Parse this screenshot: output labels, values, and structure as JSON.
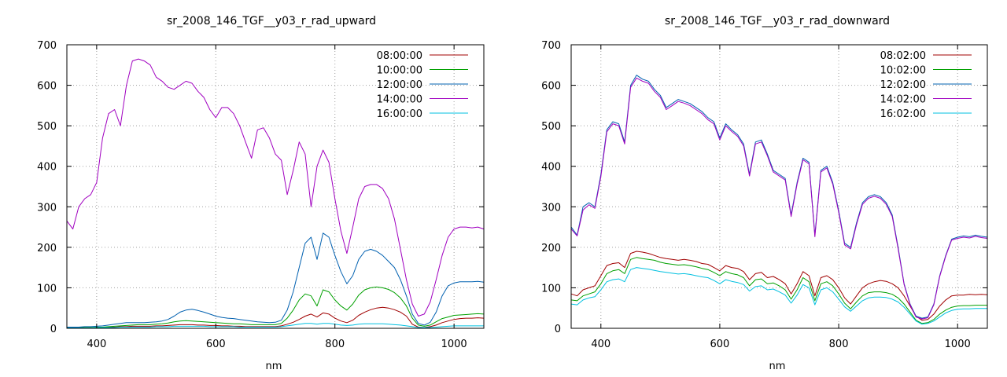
{
  "chart_data": [
    {
      "type": "line",
      "title": "sr_2008_146_TGF__y03_r_rad_upward",
      "xlabel": "nm",
      "ylabel": "",
      "xlim": [
        350,
        1050
      ],
      "ylim": [
        0,
        700
      ],
      "xticks": [
        400,
        600,
        800,
        1000
      ],
      "yticks": [
        0,
        100,
        200,
        300,
        400,
        500,
        600,
        700
      ],
      "grid": true,
      "legend_position": "top-right",
      "x": [
        350,
        360,
        370,
        380,
        390,
        400,
        410,
        420,
        430,
        440,
        450,
        460,
        470,
        480,
        490,
        500,
        510,
        520,
        530,
        540,
        550,
        560,
        570,
        580,
        590,
        600,
        610,
        620,
        630,
        640,
        650,
        660,
        670,
        680,
        690,
        700,
        710,
        720,
        730,
        740,
        750,
        760,
        770,
        780,
        790,
        800,
        810,
        820,
        830,
        840,
        850,
        860,
        870,
        880,
        890,
        900,
        910,
        920,
        930,
        940,
        950,
        960,
        970,
        980,
        990,
        1000,
        1010,
        1020,
        1030,
        1040,
        1050
      ],
      "series": [
        {
          "name": "08:00:00",
          "color": "#a00000",
          "values": [
            1,
            1,
            1,
            1,
            1,
            2,
            2,
            3,
            3,
            4,
            4,
            5,
            5,
            5,
            5,
            6,
            6,
            7,
            8,
            9,
            9,
            9,
            8,
            8,
            7,
            7,
            6,
            6,
            5,
            5,
            4,
            4,
            4,
            4,
            4,
            4,
            6,
            10,
            15,
            22,
            30,
            35,
            28,
            38,
            35,
            25,
            18,
            14,
            20,
            32,
            40,
            46,
            50,
            52,
            50,
            46,
            40,
            30,
            10,
            3,
            2,
            4,
            8,
            14,
            18,
            22,
            24,
            25,
            25,
            26,
            25
          ]
        },
        {
          "name": "10:00:00",
          "color": "#00a000",
          "values": [
            2,
            2,
            2,
            2,
            2,
            3,
            3,
            4,
            5,
            6,
            7,
            8,
            9,
            9,
            9,
            10,
            11,
            13,
            16,
            18,
            19,
            18,
            17,
            16,
            15,
            14,
            13,
            12,
            11,
            11,
            10,
            9,
            9,
            9,
            9,
            9,
            12,
            25,
            45,
            70,
            85,
            80,
            55,
            95,
            90,
            70,
            55,
            45,
            60,
            82,
            95,
            100,
            102,
            100,
            96,
            88,
            75,
            55,
            25,
            8,
            5,
            8,
            16,
            24,
            28,
            32,
            33,
            34,
            35,
            36,
            35
          ]
        },
        {
          "name": "12:00:00",
          "color": "#0060b0",
          "values": [
            3,
            3,
            3,
            4,
            4,
            5,
            6,
            8,
            10,
            12,
            14,
            14,
            14,
            14,
            15,
            16,
            18,
            22,
            30,
            40,
            45,
            47,
            44,
            40,
            35,
            30,
            27,
            25,
            24,
            22,
            20,
            18,
            16,
            15,
            14,
            15,
            20,
            45,
            90,
            150,
            210,
            225,
            170,
            235,
            225,
            180,
            140,
            110,
            130,
            170,
            190,
            195,
            190,
            180,
            165,
            150,
            120,
            80,
            35,
            12,
            8,
            15,
            40,
            80,
            105,
            112,
            115,
            115,
            115,
            116,
            114
          ]
        },
        {
          "name": "14:00:00",
          "color": "#a000c0",
          "values": [
            265,
            245,
            300,
            320,
            330,
            360,
            470,
            530,
            540,
            500,
            600,
            660,
            665,
            660,
            650,
            620,
            610,
            595,
            590,
            600,
            610,
            605,
            585,
            570,
            540,
            520,
            545,
            545,
            530,
            500,
            460,
            420,
            490,
            495,
            470,
            430,
            415,
            330,
            390,
            460,
            430,
            300,
            400,
            440,
            410,
            320,
            240,
            185,
            250,
            320,
            350,
            355,
            355,
            345,
            320,
            270,
            195,
            120,
            60,
            30,
            35,
            65,
            120,
            180,
            225,
            245,
            250,
            250,
            248,
            250,
            245
          ]
        },
        {
          "name": "16:00:00",
          "color": "#00c0e0",
          "values": [
            1,
            1,
            1,
            1,
            1,
            2,
            2,
            2,
            2,
            3,
            3,
            3,
            3,
            3,
            3,
            4,
            4,
            4,
            5,
            5,
            5,
            5,
            5,
            5,
            4,
            4,
            4,
            4,
            4,
            3,
            3,
            3,
            3,
            3,
            3,
            3,
            4,
            6,
            8,
            10,
            12,
            12,
            10,
            12,
            12,
            10,
            8,
            7,
            8,
            10,
            11,
            11,
            11,
            11,
            10,
            9,
            8,
            6,
            4,
            2,
            2,
            2,
            3,
            4,
            5,
            6,
            6,
            6,
            6,
            6,
            6
          ]
        }
      ]
    },
    {
      "type": "line",
      "title": "sr_2008_146_TGF__y03_r_rad_downward",
      "xlabel": "nm",
      "ylabel": "",
      "xlim": [
        350,
        1050
      ],
      "ylim": [
        0,
        700
      ],
      "xticks": [
        400,
        600,
        800,
        1000
      ],
      "yticks": [
        0,
        100,
        200,
        300,
        400,
        500,
        600,
        700
      ],
      "grid": true,
      "legend_position": "top-right",
      "x": [
        350,
        360,
        370,
        380,
        390,
        400,
        410,
        420,
        430,
        440,
        450,
        460,
        470,
        480,
        490,
        500,
        510,
        520,
        530,
        540,
        550,
        560,
        570,
        580,
        590,
        600,
        610,
        620,
        630,
        640,
        650,
        660,
        670,
        680,
        690,
        700,
        710,
        720,
        730,
        740,
        750,
        760,
        770,
        780,
        790,
        800,
        810,
        820,
        830,
        840,
        850,
        860,
        870,
        880,
        890,
        900,
        910,
        920,
        930,
        940,
        950,
        960,
        970,
        980,
        990,
        1000,
        1010,
        1020,
        1030,
        1040,
        1050
      ],
      "series": [
        {
          "name": "08:02:00",
          "color": "#a00000",
          "values": [
            85,
            80,
            95,
            100,
            105,
            130,
            155,
            160,
            162,
            150,
            185,
            190,
            188,
            185,
            180,
            175,
            172,
            170,
            168,
            170,
            168,
            165,
            160,
            158,
            150,
            142,
            155,
            150,
            148,
            140,
            120,
            135,
            138,
            125,
            128,
            120,
            110,
            85,
            110,
            140,
            130,
            80,
            125,
            130,
            120,
            100,
            75,
            60,
            80,
            100,
            110,
            115,
            118,
            116,
            110,
            100,
            80,
            55,
            30,
            20,
            22,
            35,
            55,
            70,
            80,
            82,
            82,
            84,
            83,
            84,
            83
          ]
        },
        {
          "name": "10:02:00",
          "color": "#00a000",
          "values": [
            70,
            68,
            80,
            85,
            90,
            110,
            135,
            142,
            145,
            135,
            170,
            175,
            172,
            170,
            168,
            163,
            160,
            158,
            156,
            157,
            155,
            152,
            148,
            145,
            138,
            130,
            140,
            135,
            132,
            125,
            105,
            120,
            122,
            110,
            112,
            105,
            95,
            72,
            95,
            125,
            115,
            68,
            110,
            115,
            105,
            85,
            62,
            48,
            65,
            80,
            88,
            90,
            90,
            88,
            84,
            75,
            60,
            40,
            20,
            12,
            14,
            22,
            35,
            45,
            52,
            55,
            56,
            56,
            57,
            57,
            57
          ]
        },
        {
          "name": "12:02:00",
          "color": "#0060b0",
          "values": [
            250,
            230,
            300,
            310,
            300,
            380,
            490,
            510,
            505,
            460,
            600,
            625,
            615,
            610,
            590,
            575,
            545,
            555,
            565,
            560,
            555,
            545,
            535,
            520,
            510,
            470,
            505,
            490,
            478,
            455,
            380,
            460,
            465,
            430,
            390,
            380,
            370,
            280,
            360,
            420,
            410,
            230,
            390,
            400,
            360,
            290,
            210,
            200,
            260,
            310,
            325,
            330,
            325,
            310,
            280,
            200,
            110,
            60,
            30,
            25,
            28,
            60,
            130,
            180,
            220,
            225,
            228,
            226,
            230,
            227,
            225
          ]
        },
        {
          "name": "14:02:00",
          "color": "#a000c0",
          "values": [
            245,
            228,
            292,
            305,
            296,
            375,
            485,
            505,
            500,
            455,
            595,
            618,
            610,
            605,
            585,
            570,
            540,
            550,
            560,
            556,
            550,
            540,
            530,
            515,
            505,
            465,
            500,
            486,
            474,
            450,
            376,
            455,
            460,
            426,
            386,
            376,
            366,
            276,
            356,
            416,
            406,
            226,
            386,
            396,
            356,
            286,
            206,
            196,
            256,
            306,
            321,
            326,
            321,
            306,
            276,
            196,
            108,
            58,
            28,
            23,
            26,
            58,
            128,
            178,
            218,
            222,
            225,
            223,
            227,
            224,
            222
          ]
        },
        {
          "name": "16:02:00",
          "color": "#00c0e0",
          "values": [
            60,
            58,
            70,
            75,
            78,
            95,
            115,
            120,
            122,
            115,
            145,
            150,
            148,
            146,
            143,
            140,
            138,
            136,
            134,
            135,
            133,
            130,
            127,
            125,
            118,
            110,
            120,
            116,
            113,
            108,
            92,
            103,
            105,
            95,
            97,
            90,
            82,
            62,
            82,
            108,
            100,
            58,
            95,
            100,
            90,
            72,
            53,
            42,
            55,
            68,
            75,
            77,
            77,
            76,
            72,
            65,
            52,
            35,
            18,
            10,
            12,
            18,
            28,
            38,
            44,
            47,
            48,
            48,
            49,
            49,
            49
          ]
        }
      ]
    }
  ]
}
